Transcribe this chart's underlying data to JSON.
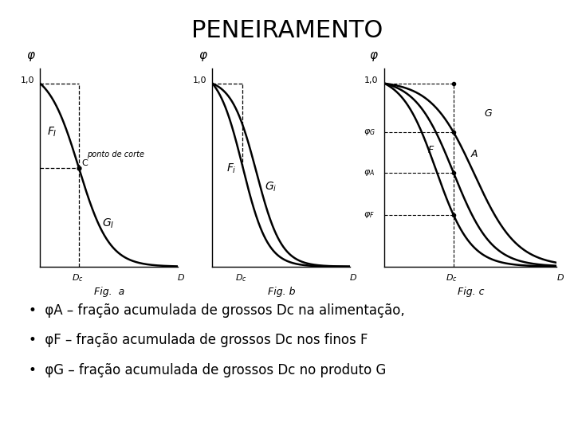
{
  "title": "PENEIRAMENTO",
  "title_fontsize": 22,
  "background_color": "#ffffff",
  "bullet_lines": [
    "φA – fração acumulada de grossos Dc na alimentação,",
    "φF – fração acumulada de grossos Dc nos finos F",
    "φG – fração acumulada de grossos Dc no produto G"
  ],
  "bullet_fontsize": 12
}
